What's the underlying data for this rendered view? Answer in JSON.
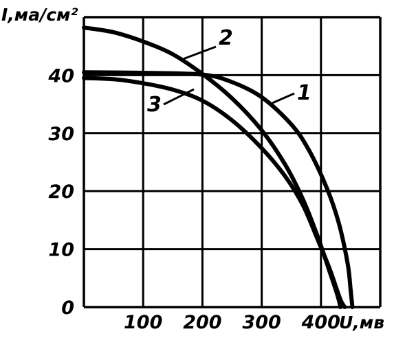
{
  "chart_data": {
    "type": "line",
    "ylabel": "I,ма/см²",
    "xlabel": "U,мв",
    "xlim": [
      0,
      500
    ],
    "ylim": [
      0,
      50
    ],
    "x_ticks": [
      0,
      100,
      200,
      300,
      400,
      500
    ],
    "y_ticks": [
      0,
      10,
      20,
      30,
      40,
      50
    ],
    "x_tick_labels": [
      "100",
      "200",
      "300",
      "400"
    ],
    "y_tick_labels": [
      "0",
      "10",
      "20",
      "30",
      "40"
    ],
    "grid": true,
    "series": [
      {
        "name": "1",
        "points": [
          [
            0,
            40.5
          ],
          [
            100,
            40.4
          ],
          [
            200,
            40.1
          ],
          [
            250,
            38.8
          ],
          [
            300,
            36.2
          ],
          [
            350,
            31.5
          ],
          [
            380,
            27.0
          ],
          [
            410,
            20.5
          ],
          [
            430,
            14.5
          ],
          [
            445,
            7.5
          ],
          [
            450,
            3.0
          ],
          [
            453,
            0
          ]
        ]
      },
      {
        "name": "2",
        "points": [
          [
            0,
            48.2
          ],
          [
            50,
            47.4
          ],
          [
            100,
            45.8
          ],
          [
            150,
            43.6
          ],
          [
            200,
            40.2
          ],
          [
            250,
            36.0
          ],
          [
            300,
            30.5
          ],
          [
            340,
            24.5
          ],
          [
            370,
            18.5
          ],
          [
            395,
            12.0
          ],
          [
            415,
            6.0
          ],
          [
            428,
            2.0
          ],
          [
            433,
            0
          ]
        ]
      },
      {
        "name": "3",
        "points": [
          [
            0,
            39.5
          ],
          [
            50,
            39.3
          ],
          [
            100,
            38.6
          ],
          [
            150,
            37.5
          ],
          [
            200,
            35.6
          ],
          [
            250,
            32.2
          ],
          [
            300,
            27.4
          ],
          [
            340,
            22.5
          ],
          [
            370,
            17.5
          ],
          [
            395,
            11.5
          ],
          [
            415,
            6.5
          ],
          [
            432,
            1.5
          ],
          [
            440,
            0
          ]
        ]
      }
    ],
    "annotations": [
      {
        "text": "1",
        "series": "1"
      },
      {
        "text": "2",
        "series": "2"
      },
      {
        "text": "3",
        "series": "3"
      }
    ]
  }
}
